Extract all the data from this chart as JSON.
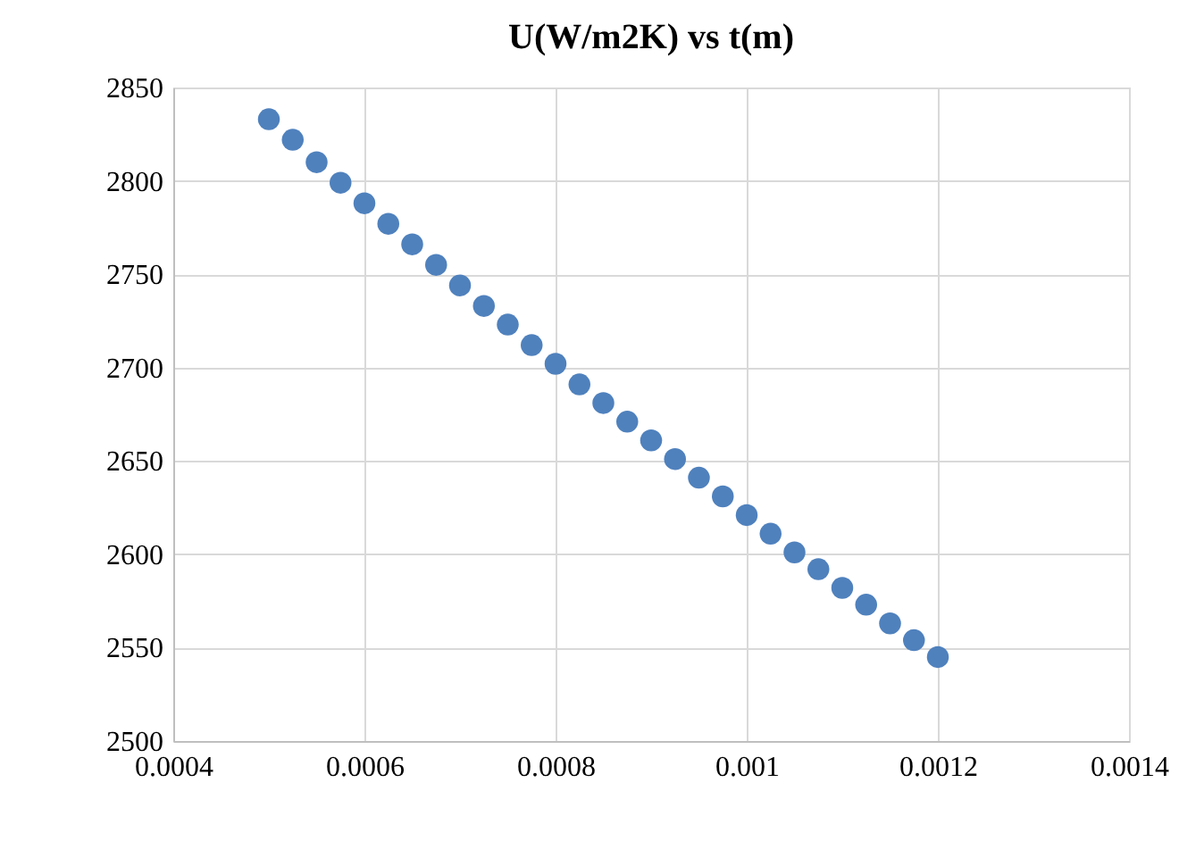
{
  "chart_data": {
    "type": "scatter",
    "title": "U(W/m2K) vs t(m)",
    "x": [
      0.0005,
      0.000525,
      0.00055,
      0.000575,
      0.0006,
      0.000625,
      0.00065,
      0.000675,
      0.0007,
      0.000725,
      0.00075,
      0.000775,
      0.0008,
      0.000825,
      0.00085,
      0.000875,
      0.0009,
      0.000925,
      0.00095,
      0.000975,
      0.001,
      0.001025,
      0.00105,
      0.001075,
      0.0011,
      0.001125,
      0.00115,
      0.001175,
      0.0012
    ],
    "series": [
      {
        "color": "#4f81bd",
        "values": [
          2833,
          2822,
          2810,
          2799,
          2788,
          2777,
          2766,
          2755,
          2744,
          2733,
          2723,
          2712,
          2702,
          2691,
          2681,
          2671,
          2661,
          2651,
          2641,
          2631,
          2621,
          2611,
          2601,
          2592,
          2582,
          2573,
          2563,
          2554,
          2545
        ]
      }
    ],
    "xlim": [
      0.0004,
      0.0014
    ],
    "xticks": [
      0.0004,
      0.0006,
      0.0008,
      0.001,
      0.0012,
      0.0014
    ],
    "ylim": [
      2500,
      2850
    ],
    "yticks": [
      2500,
      2550,
      2600,
      2650,
      2700,
      2750,
      2800,
      2850
    ],
    "grid": true,
    "marker": "circle"
  }
}
